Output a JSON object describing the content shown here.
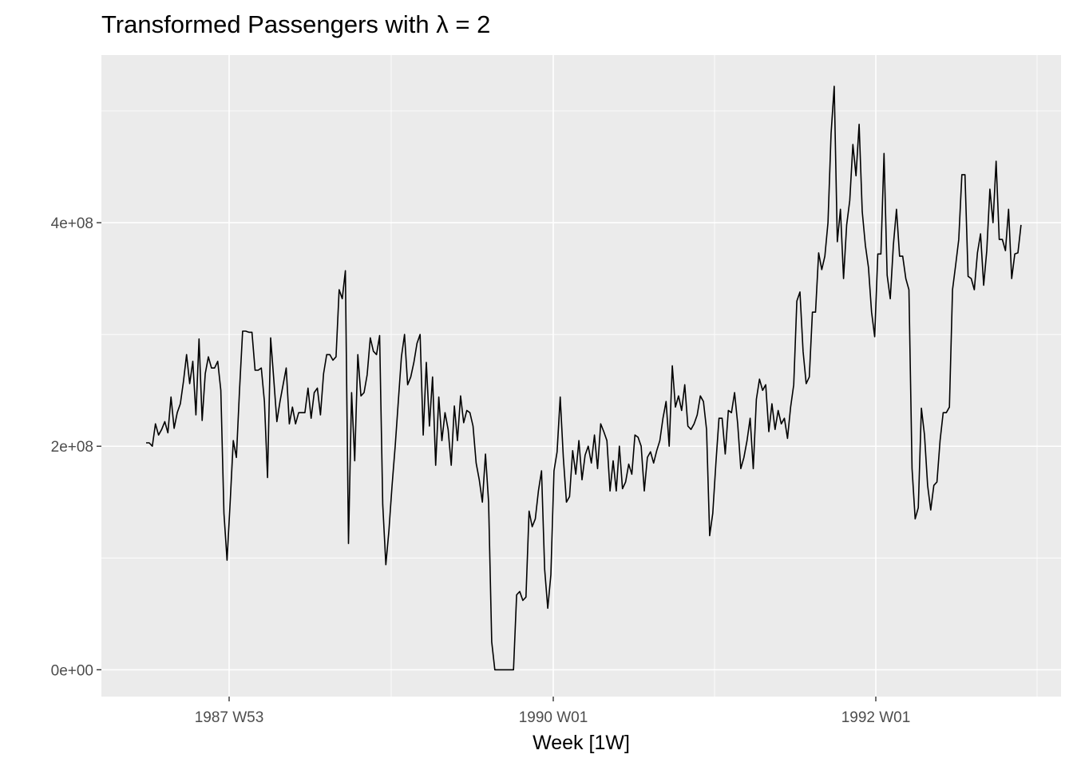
{
  "chart_data": {
    "type": "line",
    "title": "Transformed Passengers with λ = 2",
    "xlabel": "Week [1W]",
    "ylabel": "",
    "ylim": [
      -24000000,
      550000000
    ],
    "y_ticks": [
      {
        "value": 0,
        "label": "0e+00"
      },
      {
        "value": 200000000,
        "label": "2e+08"
      },
      {
        "value": 400000000,
        "label": "4e+08"
      }
    ],
    "x_ticks": [
      {
        "label": "1987 W53"
      },
      {
        "label": "1990 W01"
      },
      {
        "label": "1992 W01"
      }
    ],
    "grid": true,
    "colors": {
      "panel": "#ebebeb",
      "grid": "#ffffff",
      "line": "#000000"
    },
    "series": [
      {
        "values": [
          203,
          203,
          200,
          220,
          210,
          215,
          222,
          212,
          244,
          216,
          230,
          238,
          258,
          282,
          256,
          276,
          228,
          296,
          223,
          265,
          280,
          270,
          270,
          276,
          250,
          140,
          98,
          150,
          205,
          190,
          250,
          303,
          303,
          302,
          302,
          268,
          268,
          270,
          240,
          172,
          297,
          260,
          222,
          240,
          255,
          270,
          220,
          235,
          220,
          230,
          230,
          230,
          252,
          225,
          248,
          252,
          228,
          265,
          282,
          282,
          277,
          280,
          340,
          332,
          357,
          113,
          248,
          187,
          282,
          245,
          248,
          264,
          297,
          285,
          282,
          299,
          148,
          94,
          125,
          165,
          200,
          240,
          280,
          300,
          255,
          262,
          275,
          292,
          300,
          210,
          275,
          218,
          262,
          183,
          244,
          205,
          230,
          215,
          183,
          236,
          205,
          245,
          221,
          232,
          230,
          218,
          185,
          170,
          150,
          193,
          150,
          25,
          0,
          0,
          0,
          0,
          0,
          0,
          0,
          67,
          70,
          62,
          65,
          142,
          128,
          135,
          160,
          178,
          90,
          55,
          85,
          178,
          195,
          244,
          190,
          150,
          155,
          196,
          175,
          205,
          170,
          192,
          200,
          185,
          210,
          180,
          220,
          213,
          205,
          160,
          187,
          160,
          200,
          162,
          168,
          184,
          175,
          210,
          208,
          200,
          160,
          190,
          195,
          185,
          196,
          205,
          225,
          240,
          200,
          272,
          235,
          245,
          232,
          255,
          218,
          215,
          220,
          228,
          245,
          240,
          215,
          120,
          140,
          185,
          225,
          225,
          193,
          232,
          230,
          248,
          220,
          180,
          190,
          205,
          225,
          180,
          242,
          260,
          250,
          255,
          213,
          238,
          215,
          232,
          220,
          225,
          207,
          235,
          255,
          330,
          338,
          285,
          256,
          262,
          320,
          320,
          373,
          358,
          370,
          400,
          480,
          522,
          383,
          412,
          350,
          398,
          420,
          470,
          442,
          488,
          410,
          380,
          360,
          320,
          298,
          372,
          372,
          462,
          353,
          332,
          380,
          412,
          370,
          370,
          350,
          340,
          180,
          135,
          145,
          234,
          210,
          165,
          143,
          165,
          168,
          205,
          230,
          230,
          235,
          340,
          362,
          385,
          443,
          443,
          352,
          350,
          340,
          373,
          390,
          344,
          375,
          430,
          400,
          455,
          385,
          385,
          375,
          412,
          350,
          372,
          373,
          398
        ]
      }
    ]
  }
}
